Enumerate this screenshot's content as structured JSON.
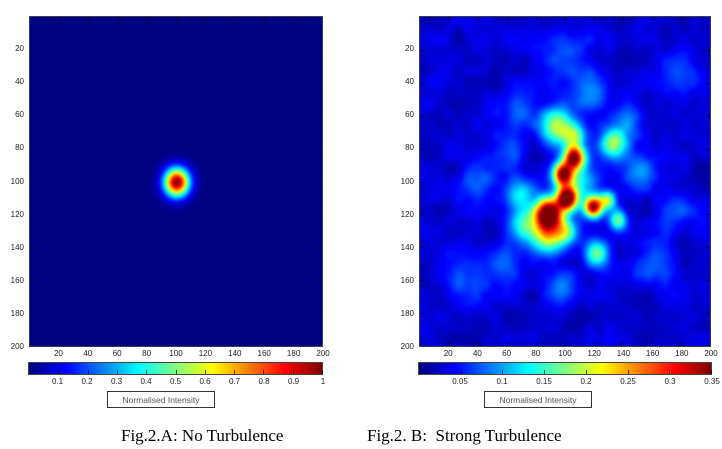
{
  "figure": {
    "colorbar_label": "Normalised Intensity"
  },
  "chart_data": [
    {
      "type": "heatmap",
      "caption": "Fig.2.A: No Turbulence",
      "axis_range": [
        0,
        200
      ],
      "x_ticks": [
        20,
        40,
        60,
        80,
        100,
        120,
        140,
        160,
        180,
        200
      ],
      "y_ticks": [
        20,
        40,
        60,
        80,
        100,
        120,
        140,
        160,
        180,
        200
      ],
      "colorbar": {
        "label": "Normalised Intensity",
        "colormap": "jet",
        "vmax": 1,
        "tick_values": [
          0.1,
          0.2,
          0.3,
          0.4,
          0.5,
          0.6,
          0.7,
          0.8,
          0.9,
          1
        ],
        "tick_labels": [
          "0.1",
          "0.2",
          "0.3",
          "0.4",
          "0.5",
          "0.6",
          "0.7",
          "0.8",
          "0.9",
          "1"
        ]
      },
      "field": {
        "base": 0,
        "noise_amp": 0,
        "noise_seed": 1,
        "hotspots": [
          {
            "x": 100,
            "y": 100,
            "sigma": 6,
            "amp": 1.0
          }
        ]
      }
    },
    {
      "type": "heatmap",
      "caption": "Fig.2. B:  Strong Turbulence",
      "axis_range": [
        0,
        200
      ],
      "x_ticks": [
        20,
        40,
        60,
        80,
        100,
        120,
        140,
        160,
        180,
        200
      ],
      "y_ticks": [
        20,
        40,
        60,
        80,
        100,
        120,
        140,
        160,
        180,
        200
      ],
      "colorbar": {
        "label": "Normalised Intensity",
        "colormap": "jet",
        "vmax": 0.35,
        "tick_values": [
          0.05,
          0.1,
          0.15,
          0.2,
          0.25,
          0.3,
          0.35
        ],
        "tick_labels": [
          "0.05",
          "0.1",
          "0.15",
          "0.2",
          "0.25",
          "0.3",
          "0.35"
        ]
      },
      "field": {
        "base": 0.02,
        "noise_amp": 0.12,
        "noise_seed": 7,
        "hotspots": [
          {
            "x": 94,
            "y": 66,
            "sigma": 8,
            "amp": 0.48
          },
          {
            "x": 106,
            "y": 72,
            "sigma": 5,
            "amp": 0.35
          },
          {
            "x": 106,
            "y": 85,
            "sigma": 5,
            "amp": 0.9
          },
          {
            "x": 98,
            "y": 95,
            "sigma": 5,
            "amp": 0.85
          },
          {
            "x": 101,
            "y": 110,
            "sigma": 5,
            "amp": 1.0
          },
          {
            "x": 88,
            "y": 119,
            "sigma": 6.5,
            "amp": 1.05
          },
          {
            "x": 119,
            "y": 115,
            "sigma": 4.5,
            "amp": 0.9
          },
          {
            "x": 100,
            "y": 130,
            "sigma": 6,
            "amp": 0.4
          },
          {
            "x": 88,
            "y": 133,
            "sigma": 7,
            "amp": 0.5
          },
          {
            "x": 109,
            "y": 99,
            "sigma": 9,
            "amp": 0.25
          },
          {
            "x": 129,
            "y": 111,
            "sigma": 4,
            "amp": 0.45
          },
          {
            "x": 136,
            "y": 123,
            "sigma": 4.5,
            "amp": 0.4
          },
          {
            "x": 72,
            "y": 126,
            "sigma": 8,
            "amp": 0.35
          },
          {
            "x": 68,
            "y": 108,
            "sigma": 7,
            "amp": 0.25
          },
          {
            "x": 122,
            "y": 143,
            "sigma": 6,
            "amp": 0.4
          },
          {
            "x": 97,
            "y": 163,
            "sigma": 8,
            "amp": 0.18
          },
          {
            "x": 132,
            "y": 77,
            "sigma": 6,
            "amp": 0.3
          },
          {
            "x": 117,
            "y": 43,
            "sigma": 9,
            "amp": 0.2
          },
          {
            "x": 69,
            "y": 54,
            "sigma": 8,
            "amp": 0.16
          },
          {
            "x": 143,
            "y": 62,
            "sigma": 8,
            "amp": 0.15
          },
          {
            "x": 152,
            "y": 93,
            "sigma": 7,
            "amp": 0.2
          },
          {
            "x": 40,
            "y": 97,
            "sigma": 10,
            "amp": 0.14
          },
          {
            "x": 100,
            "y": 24,
            "sigma": 10,
            "amp": 0.14
          },
          {
            "x": 160,
            "y": 150,
            "sigma": 9,
            "amp": 0.14
          },
          {
            "x": 57,
            "y": 152,
            "sigma": 9,
            "amp": 0.14
          },
          {
            "x": 30,
            "y": 162,
            "sigma": 10,
            "amp": 0.1
          },
          {
            "x": 176,
            "y": 117,
            "sigma": 8,
            "amp": 0.13
          },
          {
            "x": 178,
            "y": 35,
            "sigma": 9,
            "amp": 0.1
          },
          {
            "x": 135,
            "y": 75,
            "sigma": 7,
            "amp": 0.16
          },
          {
            "x": 60,
            "y": 80,
            "sigma": 8,
            "amp": 0.13
          }
        ]
      }
    }
  ]
}
